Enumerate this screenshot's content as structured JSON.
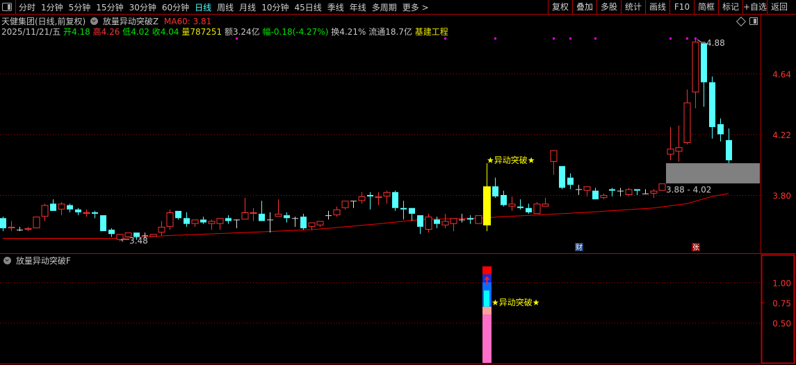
{
  "toolbar": {
    "left_items": [
      {
        "label": "分时",
        "active": false
      },
      {
        "label": "1分钟",
        "active": false
      },
      {
        "label": "5分钟",
        "active": false
      },
      {
        "label": "15分钟",
        "active": false
      },
      {
        "label": "30分钟",
        "active": false
      },
      {
        "label": "60分钟",
        "active": false
      },
      {
        "label": "日线",
        "active": true
      },
      {
        "label": "周线",
        "active": false
      },
      {
        "label": "月线",
        "active": false
      },
      {
        "label": "10分钟",
        "active": false
      },
      {
        "label": "45日线",
        "active": false
      },
      {
        "label": "季线",
        "active": false
      },
      {
        "label": "年线",
        "active": false
      },
      {
        "label": "多周期",
        "active": false
      },
      {
        "label": "更多 >",
        "active": false
      }
    ],
    "right_buttons": [
      "复权",
      "叠加",
      "多股",
      "统计",
      "画线",
      "F10",
      "简框",
      "标记",
      "+自选",
      "返回"
    ]
  },
  "header": {
    "stock_title": "天健集团(日线,前复权)",
    "indicator_name": "放量异动突破Z",
    "ma_label": "MA60: 3.81"
  },
  "quote": {
    "date": "2025/11/21/五",
    "open_label": "开",
    "open": "4.18",
    "high_label": "高",
    "high": "4.26",
    "low_label": "低",
    "low": "4.02",
    "close_label": "收",
    "close": "4.04",
    "volume_label": "量",
    "volume": "787251",
    "amount": "额3.24亿",
    "change_label": "幅",
    "change": "-0.18(-4.27%)",
    "turnover": "换4.21%",
    "float_cap": "流通18.7亿",
    "sector": "基建工程"
  },
  "sub_panel": {
    "title": "放量异动突破F"
  },
  "colors": {
    "up": "#ff3232",
    "down": "#54ffff",
    "flat": "#e0e0e0",
    "signal": "#ffff00",
    "ma60": "#ff0000",
    "grid": "#c00000",
    "zone": "#808080",
    "marker": "#ff00ff"
  },
  "chart_data": [
    {
      "type": "candlestick",
      "ohlc_fields": [
        "open",
        "high",
        "low",
        "close"
      ],
      "y_ticks": [
        "4.64",
        "4.22",
        "3.80"
      ],
      "ylim": [
        3.44,
        4.95
      ],
      "grid": "dotted horizontal at ticks",
      "candles": [
        [
          3.64,
          3.65,
          3.55,
          3.57
        ],
        [
          3.57,
          3.62,
          3.55,
          3.58
        ],
        [
          3.56,
          3.58,
          3.55,
          3.56
        ],
        [
          3.56,
          3.58,
          3.55,
          3.57
        ],
        [
          3.57,
          3.65,
          3.57,
          3.65
        ],
        [
          3.65,
          3.74,
          3.62,
          3.73
        ],
        [
          3.74,
          3.77,
          3.69,
          3.69
        ],
        [
          3.7,
          3.75,
          3.66,
          3.74
        ],
        [
          3.73,
          3.74,
          3.68,
          3.7
        ],
        [
          3.7,
          3.71,
          3.66,
          3.68
        ],
        [
          3.67,
          3.7,
          3.65,
          3.68
        ],
        [
          3.68,
          3.69,
          3.64,
          3.67
        ],
        [
          3.66,
          3.66,
          3.55,
          3.55
        ],
        [
          3.56,
          3.57,
          3.51,
          3.53
        ],
        [
          3.49,
          3.53,
          3.48,
          3.53
        ],
        [
          3.51,
          3.54,
          3.51,
          3.54
        ],
        [
          3.54,
          3.54,
          3.49,
          3.51
        ],
        [
          3.52,
          3.54,
          3.5,
          3.52
        ],
        [
          3.51,
          3.53,
          3.51,
          3.53
        ],
        [
          3.54,
          3.62,
          3.52,
          3.58
        ],
        [
          3.58,
          3.7,
          3.56,
          3.68
        ],
        [
          3.69,
          3.69,
          3.63,
          3.64
        ],
        [
          3.64,
          3.68,
          3.58,
          3.6
        ],
        [
          3.6,
          3.63,
          3.58,
          3.63
        ],
        [
          3.63,
          3.65,
          3.6,
          3.61
        ],
        [
          3.6,
          3.63,
          3.56,
          3.62
        ],
        [
          3.6,
          3.64,
          3.56,
          3.64
        ],
        [
          3.64,
          3.66,
          3.6,
          3.62
        ],
        [
          3.63,
          3.63,
          3.57,
          3.63
        ],
        [
          3.63,
          3.78,
          3.63,
          3.68
        ],
        [
          3.67,
          3.71,
          3.62,
          3.68
        ],
        [
          3.67,
          3.76,
          3.62,
          3.62
        ],
        [
          3.63,
          3.68,
          3.54,
          3.63
        ],
        [
          3.65,
          3.77,
          3.65,
          3.67
        ],
        [
          3.66,
          3.68,
          3.61,
          3.64
        ],
        [
          3.64,
          3.65,
          3.58,
          3.64
        ],
        [
          3.65,
          3.67,
          3.56,
          3.57
        ],
        [
          3.58,
          3.61,
          3.56,
          3.61
        ],
        [
          3.59,
          3.62,
          3.58,
          3.62
        ],
        [
          3.66,
          3.69,
          3.63,
          3.66
        ],
        [
          3.66,
          3.72,
          3.65,
          3.7
        ],
        [
          3.71,
          3.76,
          3.7,
          3.76
        ],
        [
          3.76,
          3.76,
          3.71,
          3.76
        ],
        [
          3.76,
          3.82,
          3.74,
          3.79
        ],
        [
          3.8,
          3.82,
          3.7,
          3.79
        ],
        [
          3.78,
          3.82,
          3.73,
          3.79
        ],
        [
          3.79,
          3.83,
          3.74,
          3.82
        ],
        [
          3.82,
          3.83,
          3.69,
          3.71
        ],
        [
          3.71,
          3.76,
          3.63,
          3.7
        ],
        [
          3.71,
          3.71,
          3.62,
          3.67
        ],
        [
          3.66,
          3.66,
          3.53,
          3.58
        ],
        [
          3.56,
          3.67,
          3.54,
          3.65
        ],
        [
          3.63,
          3.65,
          3.57,
          3.6
        ],
        [
          3.59,
          3.67,
          3.57,
          3.62
        ],
        [
          3.6,
          3.64,
          3.55,
          3.64
        ],
        [
          3.63,
          3.67,
          3.61,
          3.63
        ],
        [
          3.64,
          3.66,
          3.6,
          3.63
        ],
        [
          3.6,
          3.66,
          3.6,
          3.66
        ],
        [
          3.59,
          4.02,
          3.55,
          3.86
        ],
        [
          3.86,
          3.92,
          3.78,
          3.79
        ],
        [
          3.8,
          3.83,
          3.72,
          3.73
        ],
        [
          3.72,
          3.79,
          3.69,
          3.74
        ],
        [
          3.72,
          3.77,
          3.7,
          3.71
        ],
        [
          3.71,
          3.74,
          3.67,
          3.68
        ],
        [
          3.67,
          3.75,
          3.67,
          3.74
        ],
        [
          3.72,
          3.78,
          3.72,
          3.74
        ],
        [
          4.03,
          4.11,
          3.94,
          4.11
        ],
        [
          4.0,
          4.0,
          3.84,
          3.85
        ],
        [
          3.92,
          3.95,
          3.84,
          3.87
        ],
        [
          3.84,
          3.87,
          3.8,
          3.84
        ],
        [
          3.83,
          3.86,
          3.79,
          3.86
        ],
        [
          3.83,
          3.85,
          3.77,
          3.77
        ],
        [
          3.78,
          3.81,
          3.77,
          3.8
        ],
        [
          3.84,
          3.85,
          3.79,
          3.83
        ],
        [
          3.83,
          3.85,
          3.79,
          3.83
        ],
        [
          3.8,
          3.85,
          3.79,
          3.84
        ],
        [
          3.84,
          3.84,
          3.8,
          3.83
        ],
        [
          3.81,
          3.84,
          3.81,
          3.81
        ],
        [
          3.81,
          3.84,
          3.78,
          3.83
        ],
        [
          3.83,
          3.88,
          3.83,
          3.88
        ],
        [
          4.08,
          4.27,
          4.04,
          4.12
        ],
        [
          4.1,
          4.28,
          4.03,
          4.13
        ],
        [
          4.16,
          4.53,
          4.15,
          4.44
        ],
        [
          4.51,
          4.88,
          4.4,
          4.86
        ],
        [
          4.85,
          4.85,
          4.41,
          4.58
        ],
        [
          4.58,
          4.62,
          4.19,
          4.27
        ],
        [
          4.29,
          4.33,
          4.17,
          4.22
        ],
        [
          4.18,
          4.26,
          4.02,
          4.04
        ]
      ],
      "signal_candle_index": 58,
      "ma60": {
        "name": "MA60",
        "knots": [
          [
            0,
            3.5
          ],
          [
            14,
            3.5
          ],
          [
            20,
            3.52
          ],
          [
            29,
            3.54
          ],
          [
            37,
            3.56
          ],
          [
            45,
            3.6
          ],
          [
            50,
            3.63
          ],
          [
            57,
            3.64
          ],
          [
            60,
            3.65
          ],
          [
            70,
            3.68
          ],
          [
            78,
            3.71
          ],
          [
            82,
            3.74
          ],
          [
            85,
            3.79
          ],
          [
            87,
            3.81
          ]
        ]
      },
      "top_marker_indices": [
        28,
        53,
        59,
        66,
        68,
        71,
        80,
        82,
        83
      ],
      "annotations": {
        "signal_label": "★异动突破★",
        "high_label": "4.88",
        "high_index": 83,
        "low_label": "3.48",
        "low_index": 14,
        "zone_label": "3.88 - 4.02",
        "zone": [
          3.88,
          4.02
        ],
        "zone_start_index": 80,
        "event_badges": [
          {
            "label": "财",
            "index": 69,
            "color": "#1a3f7a"
          },
          {
            "label": "张",
            "index": 83,
            "color": "#8a0000"
          }
        ]
      }
    },
    {
      "type": "bar",
      "title": "放量异动突破F",
      "y_ticks": [
        "1.00",
        "0.75",
        "0.50"
      ],
      "ylim": [
        0,
        1.25
      ],
      "bar_index": 58,
      "segments": [
        {
          "from": 0,
          "to": 0.6,
          "color": "#ff6ec7"
        },
        {
          "from": 0.6,
          "to": 0.7,
          "color": "#ffa0a0"
        },
        {
          "from": 0.7,
          "to": 1.0,
          "color": "#0a6cff"
        },
        {
          "from": 0.7,
          "to": 0.9,
          "color": "#00ffff",
          "inner": true
        },
        {
          "from": 1.0,
          "to": 1.1,
          "color": "#1030e0"
        },
        {
          "from": 1.1,
          "to": 1.2,
          "color": "#ff0000"
        }
      ],
      "arrow": "up",
      "signal_label": "★异动突破★",
      "signal_value": 0.75
    }
  ]
}
